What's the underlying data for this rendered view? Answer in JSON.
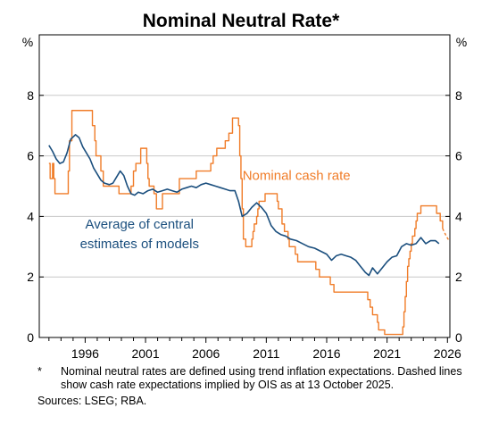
{
  "chart_data": {
    "type": "line",
    "title": "Nominal Neutral Rate*",
    "y_unit_left": "%",
    "y_unit_right": "%",
    "xlim": [
      1992.2,
      2026.2
    ],
    "ylim": [
      0,
      10
    ],
    "yticks": [
      0,
      2,
      4,
      6,
      8
    ],
    "xticks": [
      1996,
      2001,
      2006,
      2011,
      2016,
      2021,
      2026
    ],
    "grid": "horizontal",
    "colors": {
      "cash": "#f07c28",
      "neutral": "#1b4f7e",
      "grid": "#c8c8c8",
      "axis": "#000000"
    },
    "series": [
      {
        "name": "Nominal cash rate",
        "style": "step",
        "color": "#f07c28",
        "points": [
          [
            1993.0,
            5.75
          ],
          [
            1993.1,
            5.25
          ],
          [
            1993.3,
            5.75
          ],
          [
            1993.4,
            5.25
          ],
          [
            1993.5,
            4.75
          ],
          [
            1994.6,
            5.5
          ],
          [
            1994.7,
            6.5
          ],
          [
            1994.9,
            7.5
          ],
          [
            1996.6,
            7.0
          ],
          [
            1996.8,
            6.5
          ],
          [
            1996.9,
            6.0
          ],
          [
            1997.3,
            5.5
          ],
          [
            1997.5,
            5.0
          ],
          [
            1998.8,
            4.75
          ],
          [
            1999.8,
            5.0
          ],
          [
            2000.0,
            5.5
          ],
          [
            2000.2,
            5.75
          ],
          [
            2000.6,
            6.25
          ],
          [
            2001.1,
            5.75
          ],
          [
            2001.2,
            5.25
          ],
          [
            2001.3,
            5.0
          ],
          [
            2001.7,
            4.75
          ],
          [
            2001.9,
            4.25
          ],
          [
            2002.4,
            4.75
          ],
          [
            2003.8,
            5.25
          ],
          [
            2005.2,
            5.5
          ],
          [
            2006.4,
            5.75
          ],
          [
            2006.6,
            6.0
          ],
          [
            2006.9,
            6.25
          ],
          [
            2007.6,
            6.5
          ],
          [
            2007.9,
            6.75
          ],
          [
            2008.2,
            7.25
          ],
          [
            2008.7,
            7.0
          ],
          [
            2008.8,
            6.0
          ],
          [
            2008.9,
            5.25
          ],
          [
            2009.0,
            4.25
          ],
          [
            2009.1,
            3.25
          ],
          [
            2009.3,
            3.0
          ],
          [
            2009.8,
            3.25
          ],
          [
            2009.9,
            3.5
          ],
          [
            2010.0,
            3.75
          ],
          [
            2010.2,
            4.0
          ],
          [
            2010.3,
            4.25
          ],
          [
            2010.4,
            4.5
          ],
          [
            2010.9,
            4.75
          ],
          [
            2011.9,
            4.5
          ],
          [
            2012.0,
            4.25
          ],
          [
            2012.3,
            3.75
          ],
          [
            2012.5,
            3.5
          ],
          [
            2012.8,
            3.25
          ],
          [
            2012.9,
            3.0
          ],
          [
            2013.4,
            2.75
          ],
          [
            2013.6,
            2.5
          ],
          [
            2015.1,
            2.25
          ],
          [
            2015.4,
            2.0
          ],
          [
            2016.3,
            1.75
          ],
          [
            2016.6,
            1.5
          ],
          [
            2019.4,
            1.25
          ],
          [
            2019.6,
            1.0
          ],
          [
            2019.8,
            0.75
          ],
          [
            2020.2,
            0.5
          ],
          [
            2020.3,
            0.25
          ],
          [
            2020.8,
            0.1
          ],
          [
            2022.3,
            0.35
          ],
          [
            2022.4,
            0.85
          ],
          [
            2022.5,
            1.35
          ],
          [
            2022.6,
            1.85
          ],
          [
            2022.7,
            2.35
          ],
          [
            2022.8,
            2.6
          ],
          [
            2022.9,
            2.85
          ],
          [
            2023.0,
            3.1
          ],
          [
            2023.1,
            3.35
          ],
          [
            2023.3,
            3.6
          ],
          [
            2023.4,
            3.85
          ],
          [
            2023.5,
            4.1
          ],
          [
            2023.8,
            4.35
          ],
          [
            2025.1,
            4.1
          ],
          [
            2025.4,
            3.85
          ],
          [
            2025.6,
            3.6
          ]
        ]
      },
      {
        "name": "Nominal cash rate expectations (OIS)",
        "style": "dashed",
        "color": "#f07c28",
        "points": [
          [
            2025.6,
            3.6
          ],
          [
            2025.9,
            3.35
          ],
          [
            2026.1,
            3.22
          ],
          [
            2026.2,
            3.2
          ]
        ]
      },
      {
        "name": "Average of central estimates of models",
        "style": "line",
        "color": "#1b4f7e",
        "points": [
          [
            1993.0,
            6.35
          ],
          [
            1993.3,
            6.15
          ],
          [
            1993.6,
            5.9
          ],
          [
            1993.9,
            5.75
          ],
          [
            1994.2,
            5.8
          ],
          [
            1994.5,
            6.1
          ],
          [
            1994.8,
            6.55
          ],
          [
            1995.2,
            6.7
          ],
          [
            1995.5,
            6.6
          ],
          [
            1995.8,
            6.3
          ],
          [
            1996.1,
            6.1
          ],
          [
            1996.4,
            5.9
          ],
          [
            1996.7,
            5.6
          ],
          [
            1997.0,
            5.4
          ],
          [
            1997.3,
            5.2
          ],
          [
            1997.6,
            5.1
          ],
          [
            1998.0,
            5.05
          ],
          [
            1998.3,
            5.1
          ],
          [
            1998.6,
            5.3
          ],
          [
            1998.9,
            5.5
          ],
          [
            1999.2,
            5.35
          ],
          [
            1999.5,
            5.0
          ],
          [
            1999.8,
            4.75
          ],
          [
            2000.1,
            4.7
          ],
          [
            2000.4,
            4.8
          ],
          [
            2000.8,
            4.75
          ],
          [
            2001.2,
            4.85
          ],
          [
            2001.6,
            4.9
          ],
          [
            2002.0,
            4.8
          ],
          [
            2002.4,
            4.85
          ],
          [
            2002.8,
            4.9
          ],
          [
            2003.2,
            4.85
          ],
          [
            2003.6,
            4.8
          ],
          [
            2004.0,
            4.9
          ],
          [
            2004.4,
            4.95
          ],
          [
            2004.8,
            5.0
          ],
          [
            2005.2,
            4.95
          ],
          [
            2005.6,
            5.05
          ],
          [
            2006.0,
            5.1
          ],
          [
            2006.4,
            5.05
          ],
          [
            2006.8,
            5.0
          ],
          [
            2007.2,
            4.95
          ],
          [
            2007.6,
            4.9
          ],
          [
            2008.0,
            4.85
          ],
          [
            2008.4,
            4.85
          ],
          [
            2008.7,
            4.5
          ],
          [
            2009.0,
            4.0
          ],
          [
            2009.4,
            4.1
          ],
          [
            2009.8,
            4.3
          ],
          [
            2010.2,
            4.45
          ],
          [
            2010.6,
            4.3
          ],
          [
            2011.0,
            4.1
          ],
          [
            2011.4,
            3.7
          ],
          [
            2011.8,
            3.5
          ],
          [
            2012.2,
            3.4
          ],
          [
            2012.6,
            3.35
          ],
          [
            2013.0,
            3.25
          ],
          [
            2013.5,
            3.2
          ],
          [
            2014.0,
            3.1
          ],
          [
            2014.5,
            3.0
          ],
          [
            2015.0,
            2.95
          ],
          [
            2015.5,
            2.85
          ],
          [
            2016.0,
            2.75
          ],
          [
            2016.4,
            2.55
          ],
          [
            2016.8,
            2.7
          ],
          [
            2017.2,
            2.75
          ],
          [
            2017.6,
            2.7
          ],
          [
            2018.0,
            2.65
          ],
          [
            2018.4,
            2.55
          ],
          [
            2018.8,
            2.35
          ],
          [
            2019.2,
            2.15
          ],
          [
            2019.5,
            2.05
          ],
          [
            2019.8,
            2.3
          ],
          [
            2020.2,
            2.1
          ],
          [
            2020.6,
            2.3
          ],
          [
            2021.0,
            2.5
          ],
          [
            2021.4,
            2.65
          ],
          [
            2021.8,
            2.7
          ],
          [
            2022.2,
            3.0
          ],
          [
            2022.6,
            3.1
          ],
          [
            2023.0,
            3.05
          ],
          [
            2023.4,
            3.1
          ],
          [
            2023.8,
            3.3
          ],
          [
            2024.2,
            3.1
          ],
          [
            2024.6,
            3.2
          ],
          [
            2025.0,
            3.2
          ],
          [
            2025.3,
            3.1
          ]
        ]
      }
    ],
    "annotations": [
      {
        "text": "Nominal cash rate",
        "color": "#f07c28",
        "x": 2013.5,
        "y": 5.2
      },
      {
        "text": "Average of central",
        "color": "#1b4f7e",
        "x": 2000.5,
        "y": 3.6
      },
      {
        "text": "estimates of models",
        "color": "#1b4f7e",
        "x": 2000.5,
        "y": 2.95
      }
    ]
  },
  "notes": {
    "marker": "*",
    "text": "Nominal neutral rates are defined using trend inflation expectations. Dashed lines show cash rate expectations implied by OIS as at 13 October 2025.",
    "sources": "Sources:   LSEG; RBA."
  }
}
